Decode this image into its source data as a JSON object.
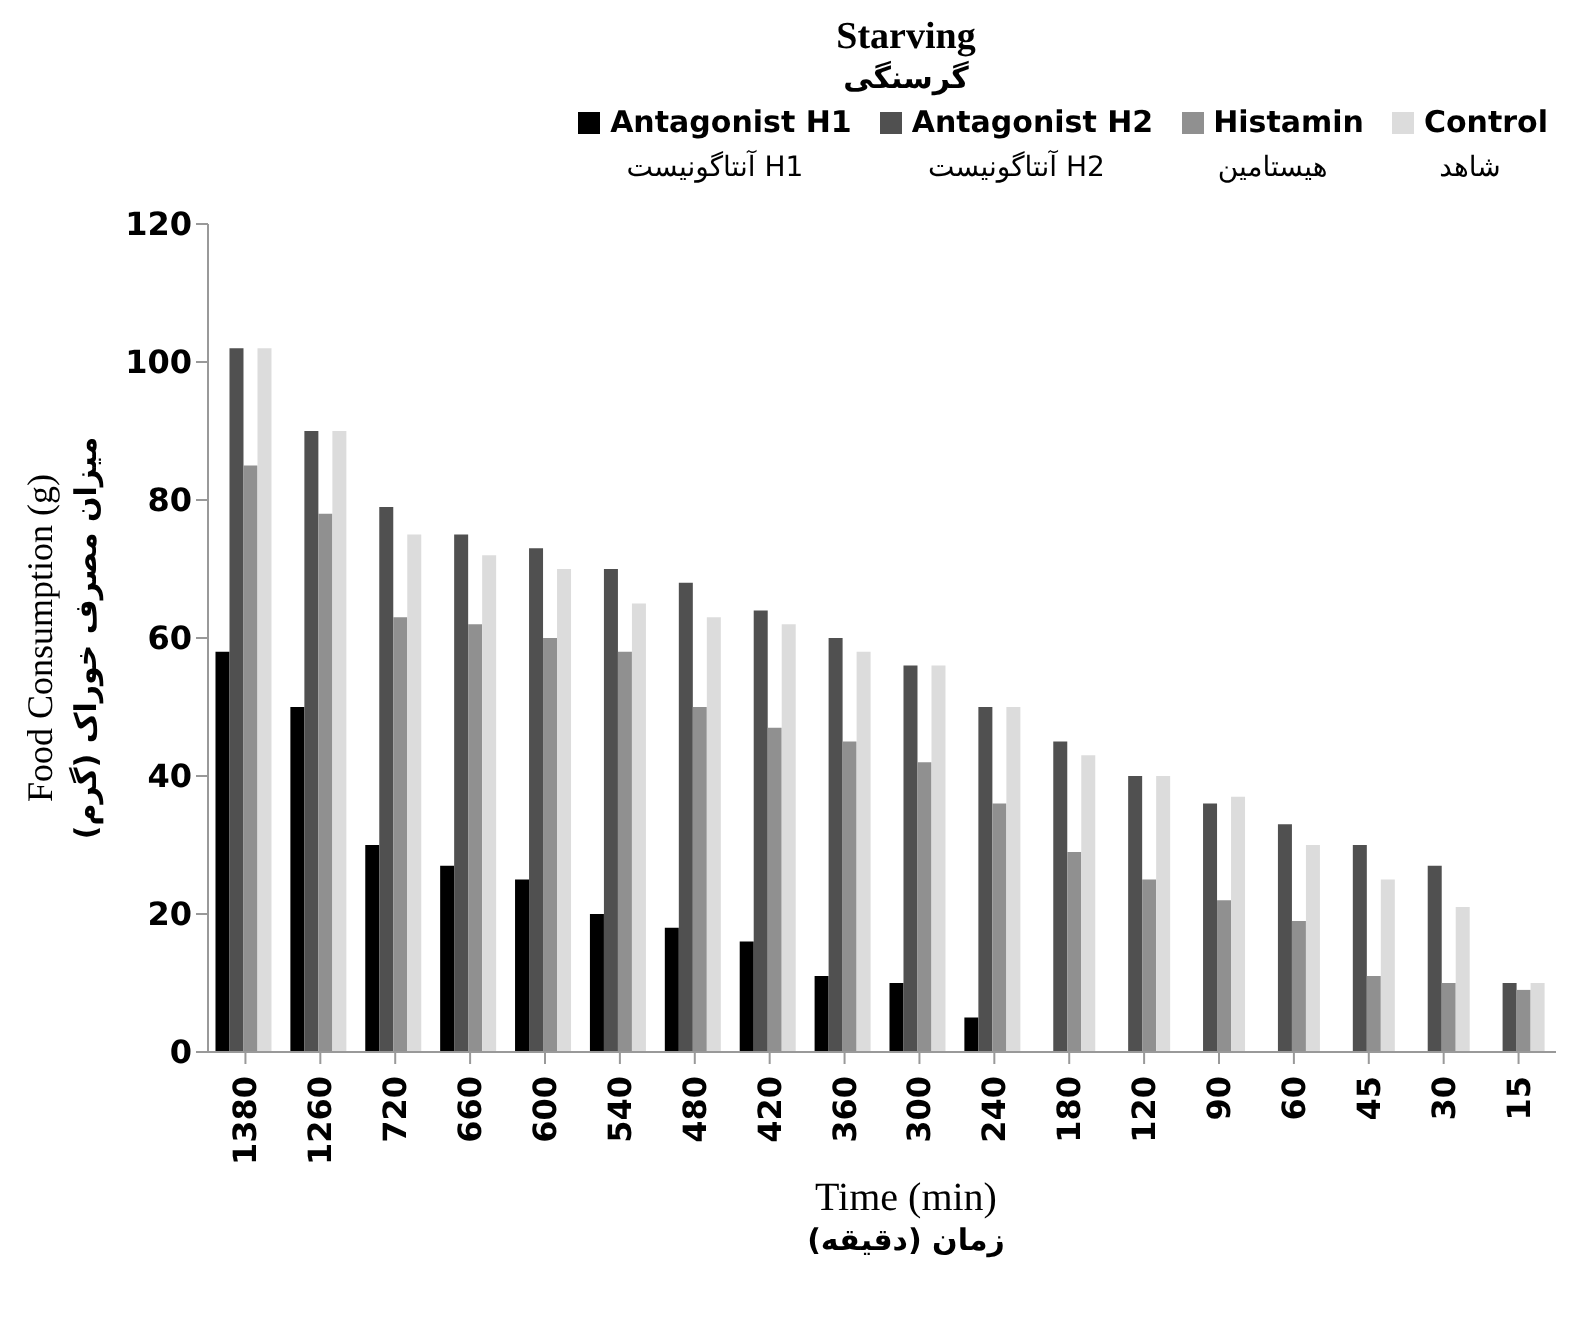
{
  "chart_data": {
    "type": "bar",
    "title": "Starving",
    "subtitle": "گرسنگی",
    "xlabel": "Time (min)\nزمان (دقیقه)",
    "ylabel": "Food Consumption (g)\nمیزان مصرف خوراک (گرم)",
    "categories": [
      "1380",
      "1260",
      "720",
      "660",
      "600",
      "540",
      "480",
      "420",
      "360",
      "300",
      "240",
      "180",
      "120",
      "90",
      "60",
      "45",
      "30",
      "15"
    ],
    "series": [
      {
        "name": "Antagonist H1\nآنتاگونیست H1",
        "color": "#000000",
        "values": [
          58,
          50,
          30,
          27,
          25,
          20,
          18,
          16,
          11,
          10,
          5,
          0,
          0,
          0,
          0,
          0,
          0,
          0
        ]
      },
      {
        "name": "Antagonist H2\nآنتاگونیست H2",
        "color": "#505050",
        "values": [
          102,
          90,
          79,
          75,
          73,
          70,
          68,
          64,
          60,
          56,
          50,
          45,
          40,
          36,
          33,
          30,
          27,
          10
        ]
      },
      {
        "name": "Histamin\nهیستامین",
        "color": "#909090",
        "values": [
          85,
          78,
          63,
          62,
          60,
          58,
          50,
          47,
          45,
          42,
          36,
          29,
          25,
          22,
          19,
          11,
          10,
          9
        ]
      },
      {
        "name": "Control\nشاهد",
        "color": "#dcdcdc",
        "values": [
          102,
          90,
          75,
          72,
          70,
          65,
          63,
          62,
          58,
          56,
          50,
          43,
          40,
          37,
          30,
          25,
          21,
          10
        ]
      }
    ],
    "ylim": [
      0,
      120
    ],
    "yticks": [
      0,
      20,
      40,
      60,
      80,
      100,
      120
    ],
    "grid": false,
    "legend": "top right"
  }
}
